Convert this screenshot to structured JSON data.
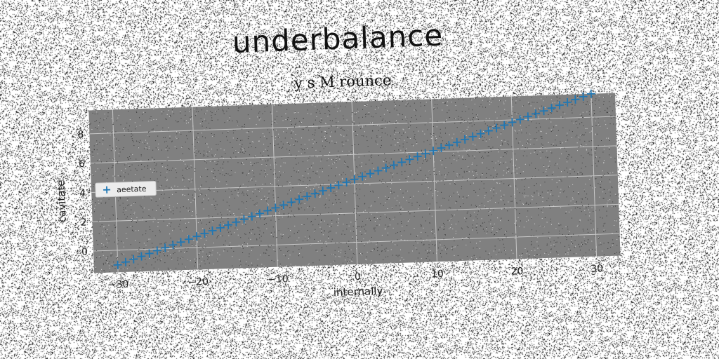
{
  "figure": {
    "suptitle": "underbalance"
  },
  "chart_data": {
    "type": "scatter",
    "title": "y s M rounce",
    "xlabel": "internally",
    "ylabel": "cavitate",
    "xlim": [
      -33,
      33
    ],
    "ylim": [
      -1.5,
      9.6
    ],
    "xticks": [
      -30,
      -20,
      -10,
      0,
      10,
      20,
      30
    ],
    "yticks": [
      0,
      2,
      4,
      6,
      8
    ],
    "grid": true,
    "legend_position": "center-left",
    "marker": "+",
    "colors": {
      "series": "#1f77b4",
      "axes_bg": "#808080",
      "grid": "#c8c8c8"
    },
    "series": [
      {
        "name": "aeetate",
        "x_start": -30,
        "x_end": 30,
        "x_step": 1,
        "y_start": -1.0,
        "y_end": 9.6
      }
    ]
  }
}
